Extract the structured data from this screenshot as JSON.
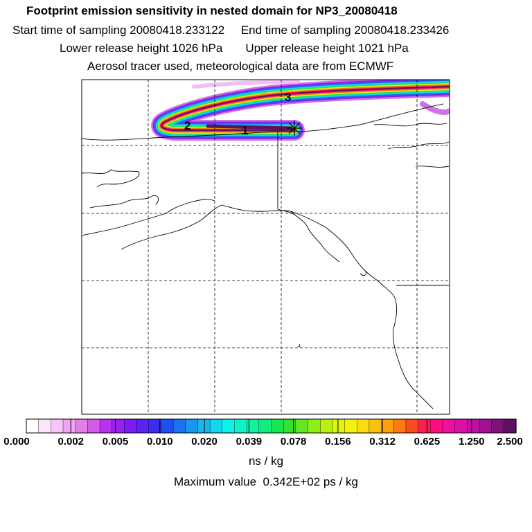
{
  "header": {
    "title": "Footprint emission sensitivity in nested domain for NP3_20080418",
    "sampling_line": "Start time of sampling 20080418.233122     End time of sampling 20080418.233426",
    "height_line": "Lower release height 1026 hPa       Upper release height 1021 hPa",
    "tracer_line": "Aerosol tracer used, meteorological data are from ECMWF"
  },
  "map": {
    "trajectory_labels": [
      "1",
      "2",
      "3"
    ]
  },
  "colorbar": {
    "ticks": [
      "0.000",
      "0.002",
      "0.005",
      "0.010",
      "0.020",
      "0.039",
      "0.078",
      "0.156",
      "0.312",
      "0.625",
      "1.250",
      "2.500"
    ],
    "colors": [
      "#ffffff",
      "#fde6fd",
      "#f7c6f7",
      "#efa6ef",
      "#e37de8",
      "#d45ae8",
      "#b833ef",
      "#9b1ff2",
      "#7a1df2",
      "#5a23f2",
      "#3b2ef2",
      "#2050f2",
      "#1b73f2",
      "#1896f0",
      "#14b8ef",
      "#10d8ef",
      "#0ff2ea",
      "#0ff2c8",
      "#0ff2a0",
      "#10ef7a",
      "#18e655",
      "#38e030",
      "#60e820",
      "#90ef18",
      "#b8f010",
      "#dcf410",
      "#f4f010",
      "#fcdc10",
      "#fcc010",
      "#fca010",
      "#fc7a10",
      "#fc4a20",
      "#fc2050",
      "#fc1080",
      "#f010a0",
      "#d810a8",
      "#c010a0",
      "#a01090",
      "#80107a",
      "#601060"
    ],
    "units": "ns / kg",
    "maximum": "Maximum value  0.342E+02 ps / kg"
  }
}
